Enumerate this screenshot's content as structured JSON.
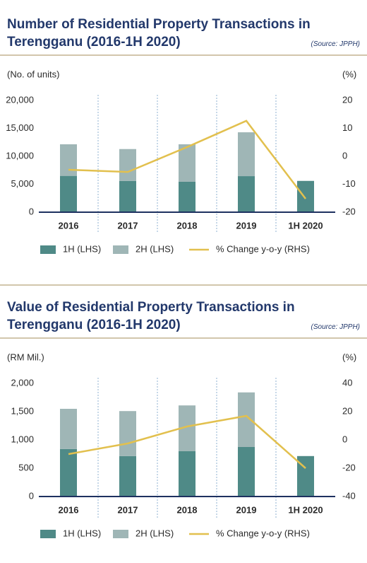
{
  "chart_data": [
    {
      "type": "bar",
      "title": "Number of Residential Property Transactions in Terengganu (2016-1H 2020)",
      "source": "(Source: JPPH)",
      "y_label": "(No. of units)",
      "y2_label": "(%)",
      "categories": [
        "2016",
        "2017",
        "2018",
        "2019",
        "1H 2020"
      ],
      "series": [
        {
          "name": "1H (LHS)",
          "type": "bar",
          "color": "#4f8a87",
          "values": [
            6500,
            5600,
            5450,
            6450,
            5600
          ]
        },
        {
          "name": "2H (LHS)",
          "type": "bar",
          "color": "#9fb6b6",
          "values": [
            5650,
            5700,
            6700,
            7850,
            null
          ]
        },
        {
          "name": "% Change y-o-y (RHS)",
          "type": "line",
          "axis": "y2",
          "color": "#e2c04e",
          "values": [
            -4.8,
            -5.6,
            3.3,
            12.7,
            -15.2
          ]
        }
      ],
      "ylim": [
        0,
        20000
      ],
      "yticks": [
        0,
        {
          "value": 5000,
          "label": "5,000"
        },
        {
          "value": 10000,
          "label": "10,000"
        },
        {
          "value": 15000,
          "label": "15,000"
        },
        {
          "value": 20000,
          "label": "20,000"
        }
      ],
      "y2lim": [
        -20,
        20
      ],
      "y2ticks": [
        -20,
        -10,
        0,
        10,
        20
      ]
    },
    {
      "type": "bar",
      "title": "Value of Residential Property Transactions in Terengganu (2016-1H 2020)",
      "source": "(Source: JPPH)",
      "y_label": "(RM Mil.)",
      "y2_label": "(%)",
      "categories": [
        "2016",
        "2017",
        "2018",
        "2019",
        "1H 2020"
      ],
      "series": [
        {
          "name": "1H (LHS)",
          "type": "bar",
          "color": "#4f8a87",
          "values": [
            840,
            715,
            800,
            875,
            715
          ]
        },
        {
          "name": "2H (LHS)",
          "type": "bar",
          "color": "#9fb6b6",
          "values": [
            710,
            795,
            810,
            965,
            null
          ]
        },
        {
          "name": "% Change y-o-y (RHS)",
          "type": "line",
          "axis": "y2",
          "color": "#e2c04e",
          "values": [
            -10,
            -2.5,
            9.5,
            17,
            -20
          ]
        }
      ],
      "ylim": [
        0,
        2000
      ],
      "yticks": [
        0,
        500,
        {
          "value": 1000,
          "label": "1,000"
        },
        {
          "value": 1500,
          "label": "1,500"
        },
        {
          "value": 2000,
          "label": "2,000"
        }
      ],
      "y2lim": [
        -40,
        40
      ],
      "y2ticks": [
        -40,
        -20,
        0,
        20,
        40
      ]
    }
  ]
}
